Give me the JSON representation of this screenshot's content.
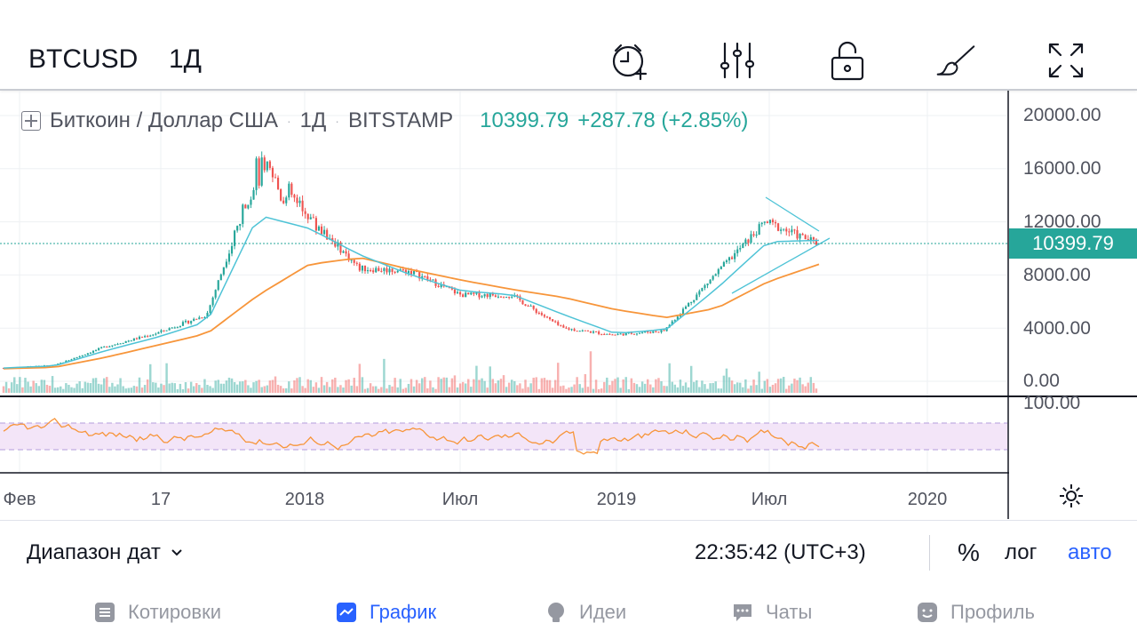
{
  "header": {
    "symbol": "BTCUSD",
    "interval": "1Д",
    "toolbar_icons": [
      "alarm-clock-plus-icon",
      "sliders-icon",
      "unlock-icon",
      "brush-icon",
      "fullscreen-icon"
    ]
  },
  "legend": {
    "title": "Биткоин / Доллар США",
    "interval": "1Д",
    "exchange": "BITSTAMP",
    "separator": "·",
    "last_price": "10399.79",
    "change": "+287.78 (+2.85%)"
  },
  "price_tag": "10399.79",
  "colors": {
    "up": "#26a69a",
    "down": "#ef5350",
    "ma_fast": "#4ec3d6",
    "ma_slow": "#f7953a",
    "rsi": "#f7953a",
    "rsi_band": "#f3e5f8",
    "accent": "#2962ff"
  },
  "chart_data": [
    {
      "type": "candlestick",
      "series": [
        {
          "name": "price",
          "x": [
            "2017-02",
            "2017-04",
            "2017-06",
            "2017-08",
            "2017-10",
            "2017-12",
            "2018-01",
            "2018-03",
            "2018-05",
            "2018-07",
            "2018-09",
            "2018-11",
            "2019-01",
            "2019-03",
            "2019-05",
            "2019-07",
            "2019-09"
          ],
          "values": [
            1000,
            1200,
            2600,
            3600,
            5000,
            16000,
            12500,
            8500,
            8300,
            6500,
            6500,
            4000,
            3500,
            3800,
            8000,
            12000,
            10399.79
          ]
        },
        {
          "name": "ma_fast",
          "values": [
            1000,
            1150,
            2300,
            3300,
            4500,
            12500,
            11500,
            9500,
            8000,
            6800,
            6500,
            5000,
            3600,
            3900,
            7000,
            10500,
            10600
          ]
        },
        {
          "name": "ma_slow",
          "values": [
            950,
            1050,
            1800,
            2700,
            3600,
            6500,
            8800,
            9300,
            8400,
            7600,
            6900,
            6300,
            5400,
            4800,
            5500,
            7500,
            8800
          ]
        }
      ],
      "yticks": [
        "0.00",
        "4000.00",
        "8000.00",
        "12000.00",
        "16000.00",
        "20000.00"
      ],
      "xticks": [
        "Фев",
        "17",
        "2018",
        "Июл",
        "2019",
        "Июл",
        "2020"
      ],
      "ylim": [
        0,
        20000
      ],
      "grid": true
    },
    {
      "type": "line",
      "name": "RSI",
      "ylim": [
        0,
        100
      ],
      "yticks": [
        "100.00"
      ],
      "band": [
        30,
        70
      ]
    }
  ],
  "bottombar": {
    "date_range": "Диапазон дат",
    "clock": "22:35:42 (UTC+3)",
    "percent": "%",
    "log": "лог",
    "auto": "авто"
  },
  "nav": [
    {
      "label": "Котировки",
      "icon": "list-icon",
      "active": false
    },
    {
      "label": "График",
      "icon": "chart-icon",
      "active": true
    },
    {
      "label": "Идеи",
      "icon": "lightbulb-icon",
      "active": false
    },
    {
      "label": "Чаты",
      "icon": "chat-icon",
      "active": false
    },
    {
      "label": "Профиль",
      "icon": "profile-icon",
      "active": false
    }
  ]
}
